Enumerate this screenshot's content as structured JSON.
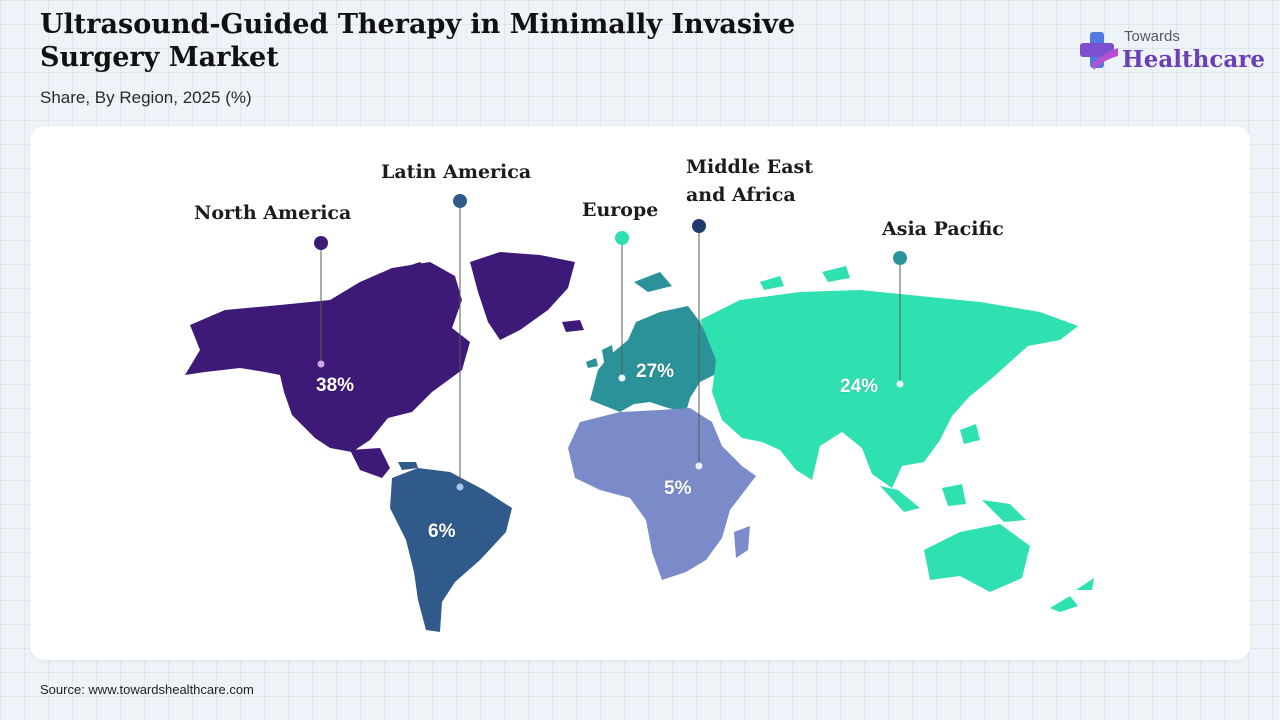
{
  "header": {
    "title": "Ultrasound-Guided Therapy in Minimally Invasive Surgery Market",
    "subtitle": "Share, By Region, 2025 (%)"
  },
  "logo": {
    "line1": "Towards",
    "line2": "Healthcare",
    "icon": "medical-cross-icon"
  },
  "colors": {
    "north_america": "#3d1a78",
    "latin_america": "#2f5a8a",
    "europe": "#2a9298",
    "middle_east_africa": "#7b8bca",
    "asia_pacific": "#2fe0b0",
    "europe_marker": "#2fe0b0",
    "mea_marker": "#223a6e"
  },
  "regions": [
    {
      "key": "north_america",
      "label": "North America",
      "value": "38%"
    },
    {
      "key": "latin_america",
      "label": "Latin America",
      "value": "6%"
    },
    {
      "key": "europe",
      "label": "Europe",
      "value": "27%"
    },
    {
      "key": "middle_east_africa",
      "label": "Middle East and Africa",
      "value": "5%"
    },
    {
      "key": "asia_pacific",
      "label": "Asia Pacific",
      "value": "24%"
    }
  ],
  "source": "Source: www.towardshealthcare.com"
}
